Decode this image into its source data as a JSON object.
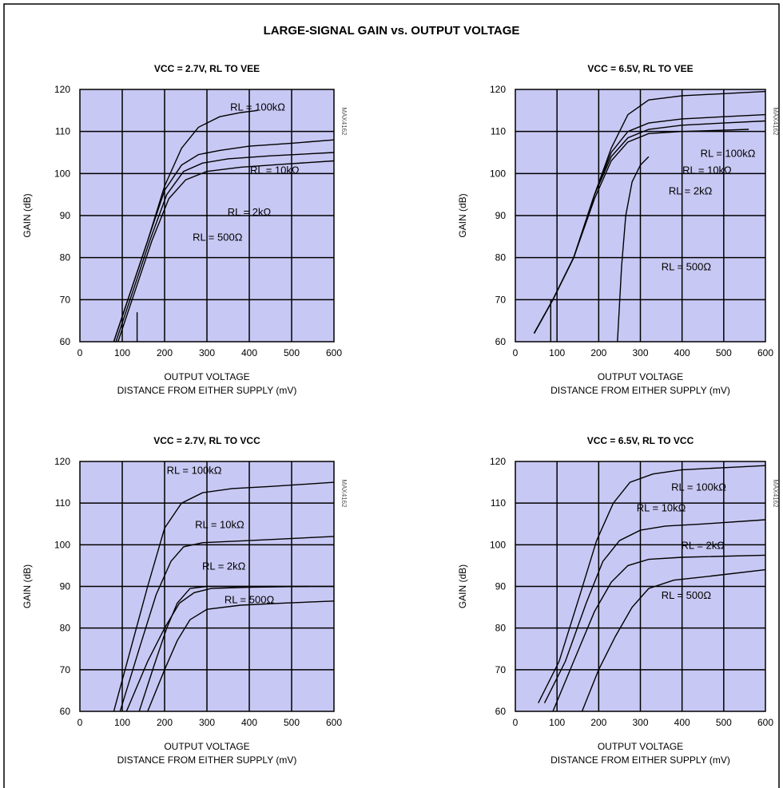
{
  "figure": {
    "title": "LARGE-SIGNAL GAIN vs. OUTPUT VOLTAGE"
  },
  "colors": {
    "plot_bg": "#c8c8f4",
    "grid": "#000000",
    "curve": "#000000",
    "frame": "#000000"
  },
  "chart_data": [
    {
      "type": "line",
      "title": "VCC = 2.7V, RL TO VEE",
      "xlabel": "OUTPUT VOLTAGE",
      "xlabel2": "DISTANCE FROM EITHER SUPPLY (mV)",
      "ylabel": "GAIN (dB)",
      "xlim": [
        0,
        600
      ],
      "ylim": [
        60,
        120
      ],
      "xticks": [
        "0",
        "100",
        "200",
        "300",
        "400",
        "500",
        "600"
      ],
      "yticks": [
        "60",
        "70",
        "80",
        "90",
        "100",
        "110",
        "120"
      ],
      "grid": true,
      "side_code": "MAX4162",
      "series": [
        {
          "name": "RL = 100kΩ",
          "x": [
            80,
            120,
            160,
            200,
            240,
            280,
            330,
            380,
            420
          ],
          "y": [
            60,
            72,
            84,
            97,
            106,
            111,
            113.5,
            114.5,
            115
          ]
        },
        {
          "name": "RL = 10kΩ",
          "x": [
            80,
            120,
            160,
            200,
            240,
            280,
            330,
            400,
            500,
            600
          ],
          "y": [
            60,
            72,
            84,
            96,
            102,
            104.5,
            105.5,
            106.5,
            107.2,
            108
          ]
        },
        {
          "name": "RL = 2kΩ",
          "x": [
            85,
            125,
            165,
            205,
            245,
            290,
            350,
            450,
            600
          ],
          "y": [
            60,
            72,
            84,
            95,
            100.5,
            102.5,
            103.5,
            104.2,
            105
          ]
        },
        {
          "name": "RL = 500Ω",
          "x": [
            90,
            130,
            170,
            210,
            250,
            300,
            380,
            480,
            600
          ],
          "y": [
            60,
            72,
            84,
            94,
            98.5,
            100.5,
            101.5,
            102.2,
            103
          ]
        },
        {
          "name": "",
          "x": [
            135,
            135
          ],
          "y": [
            60,
            67
          ]
        }
      ],
      "labels": [
        {
          "text": "RL = 100kΩ",
          "x": 420,
          "y": 115
        },
        {
          "text": "RL = 10kΩ",
          "x": 460,
          "y": 100
        },
        {
          "text": "RL = 2kΩ",
          "x": 400,
          "y": 90
        },
        {
          "text": "RL = 500Ω",
          "x": 325,
          "y": 84
        }
      ]
    },
    {
      "type": "line",
      "title": "VCC = 6.5V, RL TO VEE",
      "xlabel": "OUTPUT VOLTAGE",
      "xlabel2": "DISTANCE FROM EITHER SUPPLY (mV)",
      "ylabel": "GAIN (dB)",
      "xlim": [
        0,
        600
      ],
      "ylim": [
        60,
        120
      ],
      "xticks": [
        "0",
        "100",
        "200",
        "300",
        "400",
        "500",
        "600"
      ],
      "yticks": [
        "60",
        "70",
        "80",
        "90",
        "100",
        "110",
        "120"
      ],
      "grid": true,
      "side_code": "MAX4162",
      "series": [
        {
          "name": "RL = 100kΩ",
          "x": [
            45,
            90,
            140,
            190,
            230,
            270,
            320,
            400,
            500,
            600
          ],
          "y": [
            62,
            70,
            80,
            95,
            106,
            114,
            117.5,
            118.5,
            119,
            119.5
          ]
        },
        {
          "name": "RL = 10kΩ",
          "x": [
            45,
            90,
            140,
            190,
            230,
            270,
            320,
            400,
            500,
            600
          ],
          "y": [
            62,
            70,
            80,
            95,
            105,
            110,
            112,
            113,
            113.5,
            114
          ]
        },
        {
          "name": "RL = 2kΩ",
          "x": [
            45,
            90,
            140,
            190,
            230,
            270,
            320,
            400,
            500,
            600
          ],
          "y": [
            62,
            70,
            80,
            95,
            104,
            108.5,
            110.5,
            111.5,
            112,
            112.5
          ]
        },
        {
          "name": "RL = 500Ω",
          "x": [
            45,
            90,
            140,
            190,
            230,
            270,
            320,
            400,
            500,
            560
          ],
          "y": [
            62,
            70,
            80,
            94,
            103,
            107.5,
            109.5,
            110,
            110.3,
            110.5
          ]
        },
        {
          "name": "",
          "x": [
            245,
            255,
            265,
            280,
            300,
            320
          ],
          "y": [
            60,
            78,
            90,
            98,
            102,
            104
          ]
        },
        {
          "name": "",
          "x": [
            85,
            85
          ],
          "y": [
            60,
            70
          ]
        }
      ],
      "labels": [
        {
          "text": "RL = 100kΩ",
          "x": 510,
          "y": 104
        },
        {
          "text": "RL = 10kΩ",
          "x": 460,
          "y": 100
        },
        {
          "text": "RL = 2kΩ",
          "x": 420,
          "y": 95
        },
        {
          "text": "RL = 500Ω",
          "x": 410,
          "y": 77
        }
      ]
    },
    {
      "type": "line",
      "title": "VCC = 2.7V, RL TO VCC",
      "xlabel": "OUTPUT VOLTAGE",
      "xlabel2": "DISTANCE FROM EITHER SUPPLY (mV)",
      "ylabel": "GAIN (dB)",
      "xlim": [
        0,
        600
      ],
      "ylim": [
        60,
        120
      ],
      "xticks": [
        "0",
        "100",
        "200",
        "300",
        "400",
        "500",
        "600"
      ],
      "yticks": [
        "60",
        "70",
        "80",
        "90",
        "100",
        "110",
        "120"
      ],
      "grid": true,
      "side_code": "MAX4162",
      "series": [
        {
          "name": "RL = 100kΩ",
          "x": [
            80,
            120,
            160,
            200,
            240,
            290,
            360,
            450,
            600
          ],
          "y": [
            60,
            75,
            90,
            104,
            110,
            112.5,
            113.5,
            114,
            115
          ]
        },
        {
          "name": "RL = 10kΩ",
          "x": [
            95,
            140,
            180,
            215,
            245,
            290,
            400,
            600
          ],
          "y": [
            60,
            75,
            88,
            96,
            99.5,
            100.5,
            101,
            102
          ]
        },
        {
          "name": "RL = 2kΩ",
          "x": [
            110,
            160,
            200,
            235,
            270,
            310,
            400,
            540
          ],
          "y": [
            60,
            72,
            80,
            86,
            88.5,
            89.5,
            89.8,
            90
          ]
        },
        {
          "name": "RL = 500Ω",
          "x": [
            160,
            200,
            230,
            260,
            300,
            380,
            480,
            600
          ],
          "y": [
            60,
            70,
            77,
            82,
            84.5,
            85.5,
            86,
            86.5
          ]
        },
        {
          "name": "",
          "x": [
            140,
            175,
            205,
            230,
            260,
            300,
            380,
            480,
            600
          ],
          "y": [
            60,
            71,
            80,
            86,
            89.5,
            90,
            90,
            90,
            90
          ]
        }
      ],
      "labels": [
        {
          "text": "RL = 100kΩ",
          "x": 270,
          "y": 117
        },
        {
          "text": "RL = 10kΩ",
          "x": 330,
          "y": 104
        },
        {
          "text": "RL = 2kΩ",
          "x": 340,
          "y": 94
        },
        {
          "text": "RL = 500Ω",
          "x": 400,
          "y": 86
        }
      ]
    },
    {
      "type": "line",
      "title": "VCC = 6.5V, RL TO VCC",
      "xlabel": "OUTPUT VOLTAGE",
      "xlabel2": "DISTANCE FROM EITHER SUPPLY (mV)",
      "ylabel": "GAIN (dB)",
      "xlim": [
        0,
        600
      ],
      "ylim": [
        60,
        120
      ],
      "xticks": [
        "0",
        "100",
        "200",
        "300",
        "400",
        "500",
        "600"
      ],
      "yticks": [
        "60",
        "70",
        "80",
        "90",
        "100",
        "110",
        "120"
      ],
      "grid": true,
      "side_code": "MAX4162",
      "series": [
        {
          "name": "RL = 100kΩ",
          "x": [
            55,
            105,
            155,
            195,
            235,
            275,
            330,
            400,
            500,
            600
          ],
          "y": [
            62,
            72,
            88,
            101,
            110,
            115,
            117,
            118,
            118.5,
            119
          ]
        },
        {
          "name": "RL = 10kΩ",
          "x": [
            70,
            120,
            170,
            210,
            250,
            300,
            360,
            450,
            600
          ],
          "y": [
            62,
            72,
            86,
            96,
            101,
            103.5,
            104.5,
            105,
            106
          ]
        },
        {
          "name": "RL = 2kΩ",
          "x": [
            90,
            140,
            190,
            230,
            270,
            320,
            400,
            600
          ],
          "y": [
            60,
            72,
            84,
            91,
            95,
            96.5,
            97,
            97.5
          ]
        },
        {
          "name": "RL = 500Ω",
          "x": [
            160,
            200,
            240,
            280,
            320,
            380,
            470,
            600
          ],
          "y": [
            60,
            70,
            78,
            85,
            89.5,
            91.5,
            92.5,
            94
          ]
        }
      ],
      "labels": [
        {
          "text": "RL = 100kΩ",
          "x": 440,
          "y": 113
        },
        {
          "text": "RL = 10kΩ",
          "x": 350,
          "y": 108
        },
        {
          "text": "RL = 2kΩ",
          "x": 450,
          "y": 99
        },
        {
          "text": "RL = 500Ω",
          "x": 410,
          "y": 87
        }
      ]
    }
  ]
}
